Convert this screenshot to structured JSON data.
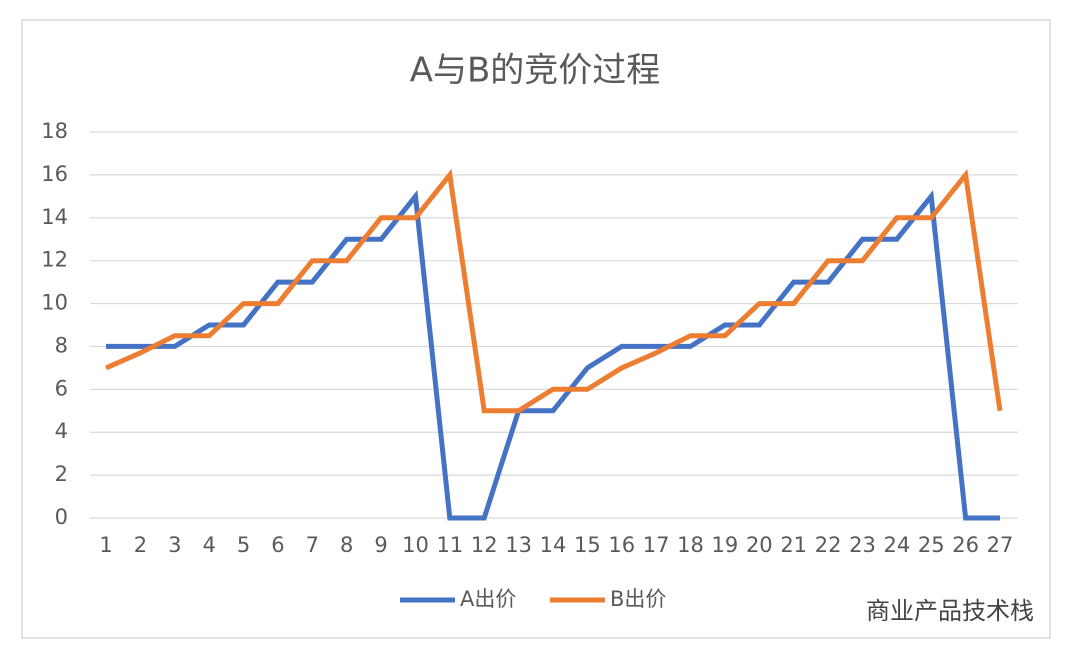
{
  "chart_data": {
    "type": "line",
    "title": "A与B的竞价过程",
    "categories": [
      "1",
      "2",
      "3",
      "4",
      "5",
      "6",
      "7",
      "8",
      "9",
      "10",
      "11",
      "12",
      "13",
      "14",
      "15",
      "16",
      "17",
      "18",
      "19",
      "20",
      "21",
      "22",
      "23",
      "24",
      "25",
      "26",
      "27"
    ],
    "series": [
      {
        "name": "A出价",
        "color": "#4472c4",
        "values": [
          8,
          8,
          8,
          9,
          9,
          11,
          11,
          13,
          13,
          15,
          0,
          0,
          5,
          5,
          7,
          8,
          8,
          8,
          9,
          9,
          11,
          11,
          13,
          13,
          15,
          0,
          0
        ]
      },
      {
        "name": "B出价",
        "color": "#ed7d31",
        "values": [
          7,
          7.7,
          8.5,
          8.5,
          10,
          10,
          12,
          12,
          14,
          14,
          16,
          5,
          5,
          6,
          6,
          7,
          7.7,
          8.5,
          8.5,
          10,
          10,
          12,
          12,
          14,
          14,
          16,
          5
        ]
      }
    ],
    "ylim": [
      0,
      18
    ],
    "yticks": [
      0,
      2,
      4,
      6,
      8,
      10,
      12,
      14,
      16,
      18
    ],
    "grid": true,
    "legend": "bottom",
    "watermark": "商业产品技术栈"
  }
}
